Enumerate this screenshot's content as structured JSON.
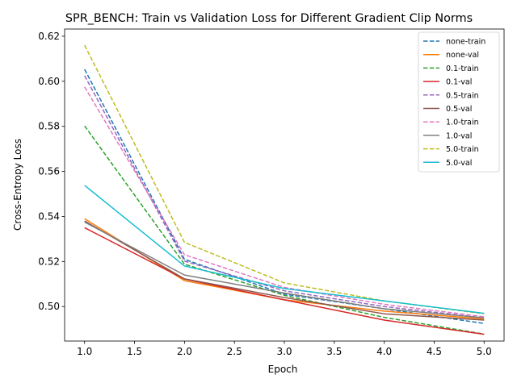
{
  "chart_data": {
    "type": "line",
    "title": "SPR_BENCH: Train vs Validation Loss for Different Gradient Clip Norms",
    "xlabel": "Epoch",
    "ylabel": "Cross-Entropy Loss",
    "xlim": [
      0.8,
      5.2
    ],
    "ylim": [
      0.4847,
      0.6232
    ],
    "xticks": [
      1.0,
      1.5,
      2.0,
      2.5,
      3.0,
      3.5,
      4.0,
      4.5,
      5.0
    ],
    "xtick_labels": [
      "1.0",
      "1.5",
      "2.0",
      "2.5",
      "3.0",
      "3.5",
      "4.0",
      "4.5",
      "5.0"
    ],
    "yticks": [
      0.5,
      0.52,
      0.54,
      0.56,
      0.58,
      0.6,
      0.62
    ],
    "ytick_labels": [
      "0.50",
      "0.52",
      "0.54",
      "0.56",
      "0.58",
      "0.60",
      "0.62"
    ],
    "grid": false,
    "legend_position": "upper right",
    "x": [
      1,
      2,
      3,
      4,
      5
    ],
    "series": [
      {
        "name": "none-train",
        "color": "#1f77b4",
        "dashed": true,
        "values": [
          0.6053,
          0.521,
          0.5055,
          0.499,
          0.4925
        ]
      },
      {
        "name": "none-val",
        "color": "#ff7f0e",
        "dashed": false,
        "values": [
          0.539,
          0.5115,
          0.503,
          0.498,
          0.4945
        ]
      },
      {
        "name": "0.1-train",
        "color": "#2ca02c",
        "dashed": true,
        "values": [
          0.5802,
          0.5188,
          0.505,
          0.4952,
          0.4878
        ]
      },
      {
        "name": "0.1-val",
        "color": "#d62728",
        "dashed": false,
        "values": [
          0.535,
          0.5122,
          0.503,
          0.494,
          0.4877
        ]
      },
      {
        "name": "0.5-train",
        "color": "#9467bd",
        "dashed": true,
        "values": [
          0.6025,
          0.5202,
          0.507,
          0.5,
          0.495
        ]
      },
      {
        "name": "0.5-val",
        "color": "#8c564b",
        "dashed": false,
        "values": [
          0.538,
          0.5123,
          0.504,
          0.4968,
          0.494
        ]
      },
      {
        "name": "1.0-train",
        "color": "#e377c2",
        "dashed": true,
        "values": [
          0.5975,
          0.523,
          0.5085,
          0.501,
          0.4955
        ]
      },
      {
        "name": "1.0-val",
        "color": "#7f7f7f",
        "dashed": false,
        "values": [
          0.5375,
          0.514,
          0.506,
          0.499,
          0.495
        ]
      },
      {
        "name": "5.0-train",
        "color": "#bcbd22",
        "dashed": true,
        "values": [
          0.616,
          0.5285,
          0.5105,
          0.5025,
          0.4968
        ]
      },
      {
        "name": "5.0-val",
        "color": "#17becf",
        "dashed": false,
        "values": [
          0.5538,
          0.518,
          0.508,
          0.5025,
          0.497
        ]
      }
    ]
  }
}
